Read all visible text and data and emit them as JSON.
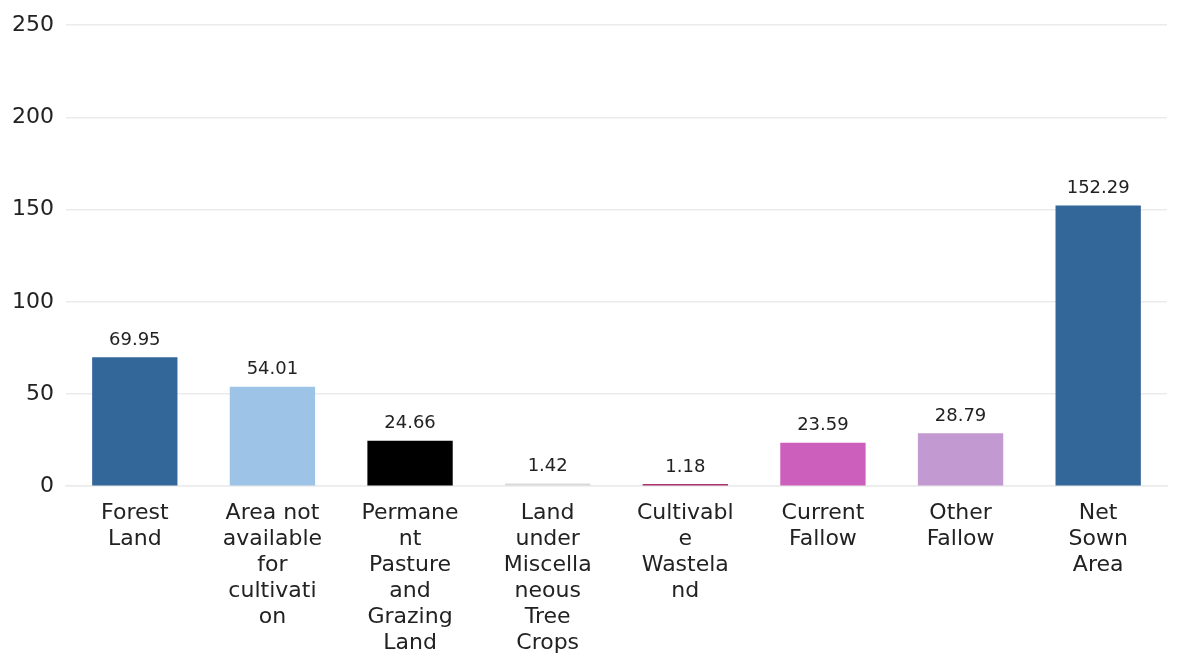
{
  "chart_data": {
    "type": "bar",
    "categories": [
      "Forest Land",
      "Area not available for cultivation",
      "Permanent Pasture and Grazing Land",
      "Land under Miscellaneous Tree Crops",
      "Cultivable Wasteland",
      "Current Fallow",
      "Other Fallow",
      "Net Sown Area"
    ],
    "values": [
      69.95,
      54.01,
      24.66,
      1.42,
      1.18,
      23.59,
      28.79,
      152.29
    ],
    "colors": [
      "#336699",
      "#9dc3e6",
      "#000000",
      "#d9d9d9",
      "#a8336e",
      "#cc5fbc",
      "#c299d1",
      "#336699"
    ],
    "ylim": [
      0,
      250
    ],
    "yticks": [
      0,
      50,
      100,
      150,
      200,
      250
    ],
    "grid": "y",
    "data_labels": true,
    "legend": false
  }
}
